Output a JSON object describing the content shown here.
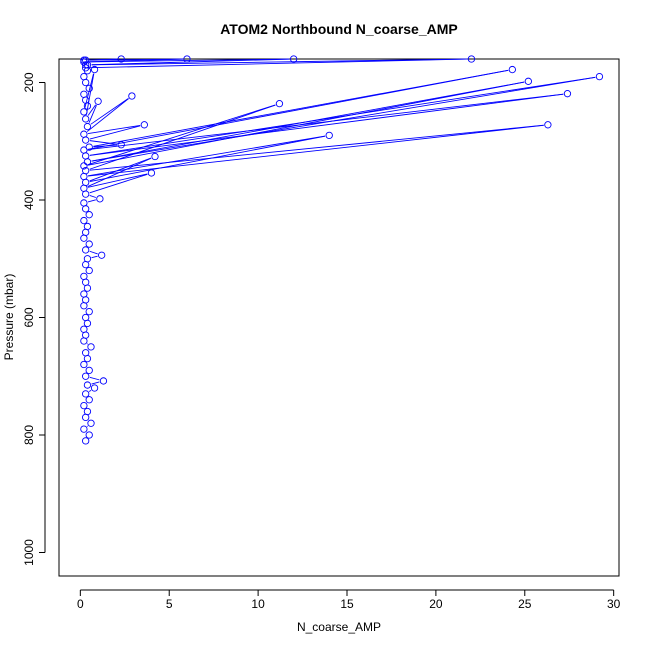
{
  "chart_data": {
    "type": "line",
    "title": "ATOM2 Northbound N_coarse_AMP",
    "xlabel": "N_coarse_AMP",
    "ylabel": "Pressure (mbar)",
    "xlim": [
      -1.2,
      30.3
    ],
    "ylim": [
      1040,
      160
    ],
    "y_reversed": true,
    "x_ticks": [
      0,
      5,
      10,
      15,
      20,
      25,
      30
    ],
    "y_ticks": [
      200,
      400,
      600,
      800,
      1000
    ],
    "grid": false,
    "legend": "none",
    "color": "#0000ff",
    "series": [
      {
        "style": "lines+open-circles",
        "points": [
          [
            0.3,
            810
          ],
          [
            0.5,
            800
          ],
          [
            0.2,
            790
          ],
          [
            0.6,
            780
          ],
          [
            0.3,
            770
          ],
          [
            0.4,
            760
          ],
          [
            0.2,
            750
          ],
          [
            0.5,
            740
          ],
          [
            0.3,
            730
          ],
          [
            0.8,
            720
          ],
          [
            0.4,
            715
          ],
          [
            1.3,
            708
          ],
          [
            0.3,
            700
          ],
          [
            0.5,
            690
          ],
          [
            0.2,
            680
          ],
          [
            0.4,
            670
          ],
          [
            0.3,
            660
          ],
          [
            0.6,
            650
          ],
          [
            0.2,
            640
          ],
          [
            0.3,
            630
          ],
          [
            0.2,
            620
          ],
          [
            0.4,
            610
          ],
          [
            0.3,
            600
          ],
          [
            0.5,
            590
          ],
          [
            0.2,
            580
          ],
          [
            0.3,
            570
          ],
          [
            0.2,
            560
          ],
          [
            0.4,
            550
          ],
          [
            0.3,
            540
          ],
          [
            0.2,
            530
          ],
          [
            0.5,
            520
          ],
          [
            0.3,
            510
          ],
          [
            0.4,
            500
          ],
          [
            1.2,
            494
          ],
          [
            0.3,
            485
          ],
          [
            0.5,
            475
          ],
          [
            0.2,
            465
          ],
          [
            0.3,
            455
          ],
          [
            0.4,
            445
          ],
          [
            0.2,
            435
          ],
          [
            0.5,
            425
          ],
          [
            0.3,
            415
          ],
          [
            0.2,
            405
          ],
          [
            1.1,
            398
          ],
          [
            0.3,
            390
          ],
          [
            4.0,
            354
          ],
          [
            0.2,
            380
          ],
          [
            4.2,
            326
          ],
          [
            0.3,
            370
          ],
          [
            14.0,
            290
          ],
          [
            0.2,
            360
          ],
          [
            26.3,
            272
          ],
          [
            0.3,
            350
          ],
          [
            11.2,
            236
          ],
          [
            0.2,
            342
          ],
          [
            25.2,
            198
          ],
          [
            0.4,
            335
          ],
          [
            29.2,
            190
          ],
          [
            0.3,
            325
          ],
          [
            27.4,
            219
          ],
          [
            0.2,
            315
          ],
          [
            24.3,
            178
          ],
          [
            0.5,
            310
          ],
          [
            2.3,
            306
          ],
          [
            0.3,
            298
          ],
          [
            3.6,
            272
          ],
          [
            0.2,
            288
          ],
          [
            2.9,
            223
          ],
          [
            0.4,
            275
          ],
          [
            1.0,
            232
          ],
          [
            0.3,
            262
          ],
          [
            0.8,
            178
          ],
          [
            0.2,
            250
          ],
          [
            0.4,
            240
          ],
          [
            0.3,
            230
          ],
          [
            0.2,
            220
          ],
          [
            0.5,
            210
          ],
          [
            0.3,
            200
          ],
          [
            0.2,
            190
          ],
          [
            0.4,
            180
          ],
          [
            0.3,
            170
          ],
          [
            0.2,
            162
          ],
          [
            2.3,
            160
          ],
          [
            0.3,
            162
          ],
          [
            6.0,
            160
          ],
          [
            0.2,
            165
          ],
          [
            12.0,
            160
          ],
          [
            0.4,
            170
          ],
          [
            22.0,
            160
          ],
          [
            0.3,
            175
          ]
        ]
      }
    ]
  }
}
